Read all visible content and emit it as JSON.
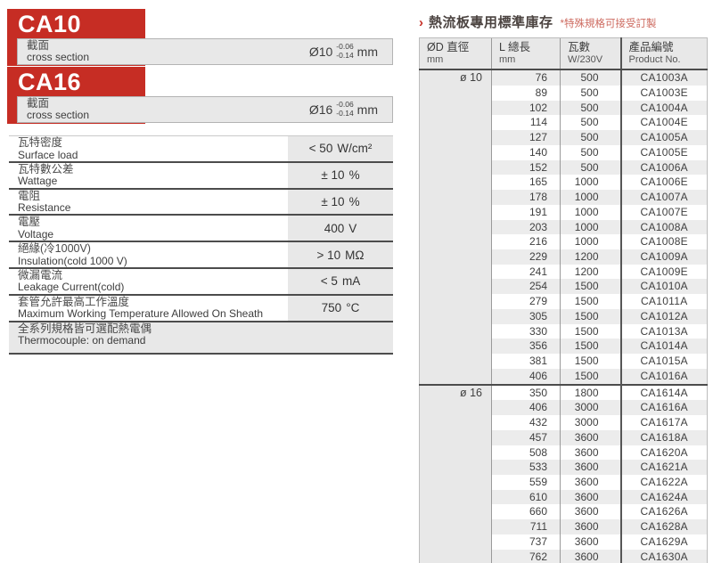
{
  "colors": {
    "accent_red": "#c62d24",
    "note_red": "#cd6a5f",
    "bar_gray": "#e8e8e8",
    "stripe_gray": "#ececec",
    "line_dark": "#4c4c4c"
  },
  "products": [
    {
      "code": "CA10",
      "section_zh": "截面",
      "section_en": "cross section",
      "diameter": "Ø10",
      "tol_upper": "-0.06",
      "tol_lower": "-0.14",
      "unit": "mm"
    },
    {
      "code": "CA16",
      "section_zh": "截面",
      "section_en": "cross section",
      "diameter": "Ø16",
      "tol_upper": "-0.06",
      "tol_lower": "-0.14",
      "unit": "mm"
    }
  ],
  "specs": {
    "rows": [
      {
        "zh": "瓦特密度",
        "en": "Surface load",
        "value": "< 50",
        "unit": "W/cm²"
      },
      {
        "zh": "瓦特數公差",
        "en": "Wattage",
        "value": "± 10",
        "unit": "%"
      },
      {
        "zh": "電阻",
        "en": "Resistance",
        "value": "± 10",
        "unit": "%"
      },
      {
        "zh": "電壓",
        "en": "Voltage",
        "value": "400",
        "unit": "V"
      },
      {
        "zh": "絕緣(冷1000V)",
        "en": "Insulation(cold 1000 V)",
        "value": "> 10",
        "unit": "MΩ"
      },
      {
        "zh": "微漏電流",
        "en": "Leakage Current(cold)",
        "value": "< 5",
        "unit": "mA"
      },
      {
        "zh": "套管允許最高工作溫度",
        "en": "Maximum Working Temperature Allowed On Sheath",
        "value": "750",
        "unit": "°C"
      }
    ],
    "footer": {
      "zh": "全系列規格皆可選配熱電偶",
      "en": "Thermocouple: on demand"
    }
  },
  "inventory": {
    "arrow": "›",
    "title": "熱流板專用標準庫存",
    "note": "*特殊規格可接受訂製",
    "columns": [
      {
        "zh": "ØD 直徑",
        "sub": "mm"
      },
      {
        "zh": "L 總長",
        "sub": "mm"
      },
      {
        "zh": "瓦數",
        "sub": "W/230V"
      },
      {
        "zh": "產品編號",
        "sub": "Product No."
      }
    ],
    "groups": [
      {
        "diameter": "ø 10",
        "rows": [
          [
            76,
            500,
            "CA1003A"
          ],
          [
            89,
            500,
            "CA1003E"
          ],
          [
            102,
            500,
            "CA1004A"
          ],
          [
            114,
            500,
            "CA1004E"
          ],
          [
            127,
            500,
            "CA1005A"
          ],
          [
            140,
            500,
            "CA1005E"
          ],
          [
            152,
            500,
            "CA1006A"
          ],
          [
            165,
            1000,
            "CA1006E"
          ],
          [
            178,
            1000,
            "CA1007A"
          ],
          [
            191,
            1000,
            "CA1007E"
          ],
          [
            203,
            1000,
            "CA1008A"
          ],
          [
            216,
            1000,
            "CA1008E"
          ],
          [
            229,
            1200,
            "CA1009A"
          ],
          [
            241,
            1200,
            "CA1009E"
          ],
          [
            254,
            1500,
            "CA1010A"
          ],
          [
            279,
            1500,
            "CA1011A"
          ],
          [
            305,
            1500,
            "CA1012A"
          ],
          [
            330,
            1500,
            "CA1013A"
          ],
          [
            356,
            1500,
            "CA1014A"
          ],
          [
            381,
            1500,
            "CA1015A"
          ],
          [
            406,
            1500,
            "CA1016A"
          ]
        ]
      },
      {
        "diameter": "ø 16",
        "rows": [
          [
            350,
            1800,
            "CA1614A"
          ],
          [
            406,
            3000,
            "CA1616A"
          ],
          [
            432,
            3000,
            "CA1617A"
          ],
          [
            457,
            3600,
            "CA1618A"
          ],
          [
            508,
            3600,
            "CA1620A"
          ],
          [
            533,
            3600,
            "CA1621A"
          ],
          [
            559,
            3600,
            "CA1622A"
          ],
          [
            610,
            3600,
            "CA1624A"
          ],
          [
            660,
            3600,
            "CA1626A"
          ],
          [
            711,
            3600,
            "CA1628A"
          ],
          [
            737,
            3600,
            "CA1629A"
          ],
          [
            762,
            3600,
            "CA1630A"
          ]
        ]
      }
    ]
  }
}
